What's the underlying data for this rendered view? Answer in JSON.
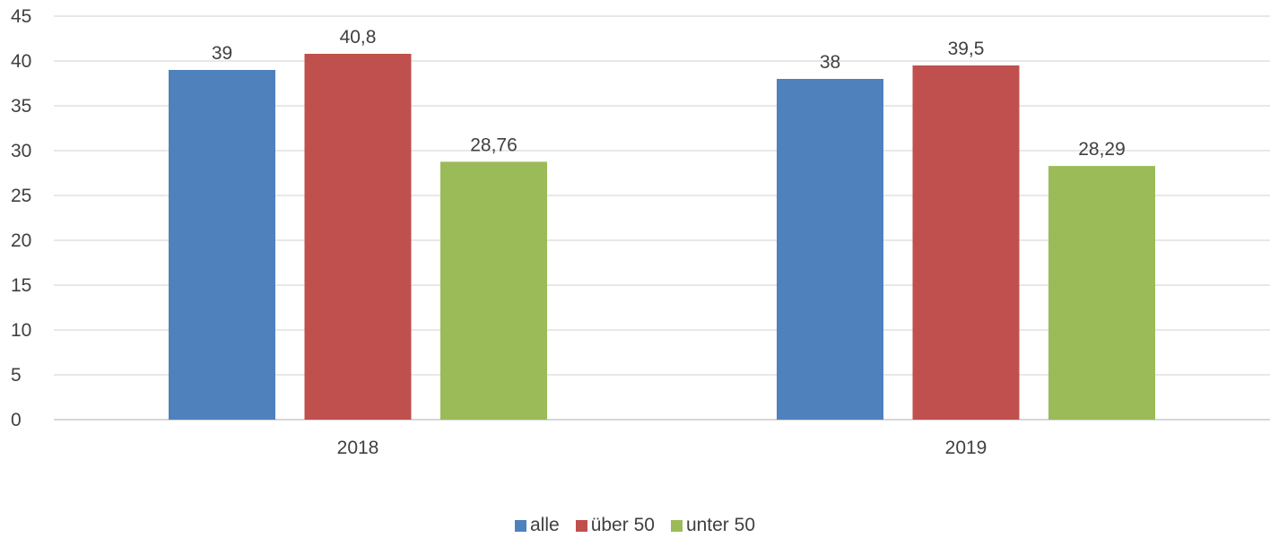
{
  "chart_data": {
    "type": "bar",
    "categories": [
      "2018",
      "2019"
    ],
    "series": [
      {
        "name": "alle",
        "values": [
          39,
          38
        ],
        "labels": [
          "39",
          "38"
        ],
        "color": "#4F81BD"
      },
      {
        "name": "über 50",
        "values": [
          40.8,
          39.5
        ],
        "labels": [
          "40,8",
          "39,5"
        ],
        "color": "#C0504D"
      },
      {
        "name": "unter 50",
        "values": [
          28.76,
          28.29
        ],
        "labels": [
          "28,76",
          "28,29"
        ],
        "color": "#9BBB59"
      }
    ],
    "ylim": [
      0,
      45
    ],
    "yticks": [
      "0",
      "5",
      "10",
      "15",
      "20",
      "25",
      "30",
      "35",
      "40",
      "45"
    ],
    "grid": true,
    "legend_position": "bottom"
  }
}
